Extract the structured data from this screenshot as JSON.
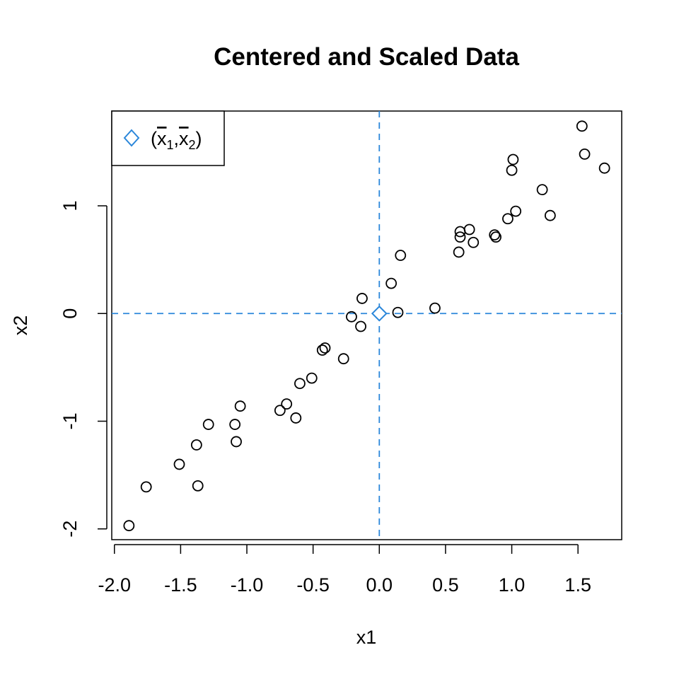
{
  "chart_data": {
    "type": "scatter",
    "title": "Centered and Scaled Data",
    "xlabel": "x1",
    "ylabel": "x2",
    "xlim": [
      -2.02,
      1.83
    ],
    "ylim": [
      -2.1,
      1.88
    ],
    "x_ticks": [
      -2.0,
      -1.5,
      -1.0,
      -0.5,
      0.0,
      0.5,
      1.0,
      1.5
    ],
    "x_tick_labels": [
      "-2.0",
      "-1.5",
      "-1.0",
      "-0.5",
      "0.0",
      "0.5",
      "1.0",
      "1.5"
    ],
    "y_ticks": [
      -2,
      -1,
      0,
      1
    ],
    "y_tick_labels": [
      "-2",
      "-1",
      "0",
      "1"
    ],
    "grid": false,
    "mean_lines": {
      "x": 0,
      "y": 0,
      "color": "#2b87da",
      "style": "dashed"
    },
    "mean_point": {
      "x": 0,
      "y": 0,
      "color": "#2b87da",
      "marker": "diamond"
    },
    "legend": {
      "placement": "top-left",
      "open": "(",
      "var1": "x",
      "sub1": "1",
      "sep": ",",
      "var2": "x",
      "sub2": "2",
      "close": ")"
    },
    "series": [
      {
        "marker": "open-circle",
        "color": "#000000",
        "points": [
          [
            -1.89,
            -1.97
          ],
          [
            -1.76,
            -1.61
          ],
          [
            -1.51,
            -1.4
          ],
          [
            -1.38,
            -1.22
          ],
          [
            -1.37,
            -1.6
          ],
          [
            -1.29,
            -1.03
          ],
          [
            -1.09,
            -1.03
          ],
          [
            -1.08,
            -1.19
          ],
          [
            -1.05,
            -0.86
          ],
          [
            -0.75,
            -0.9
          ],
          [
            -0.7,
            -0.84
          ],
          [
            -0.63,
            -0.97
          ],
          [
            -0.6,
            -0.65
          ],
          [
            -0.51,
            -0.6
          ],
          [
            -0.43,
            -0.34
          ],
          [
            -0.41,
            -0.32
          ],
          [
            -0.27,
            -0.42
          ],
          [
            -0.21,
            -0.03
          ],
          [
            -0.14,
            -0.12
          ],
          [
            -0.13,
            0.14
          ],
          [
            0.09,
            0.28
          ],
          [
            0.14,
            0.01
          ],
          [
            0.16,
            0.54
          ],
          [
            0.42,
            0.05
          ],
          [
            0.6,
            0.57
          ],
          [
            0.61,
            0.71
          ],
          [
            0.61,
            0.76
          ],
          [
            0.68,
            0.78
          ],
          [
            0.71,
            0.66
          ],
          [
            0.87,
            0.73
          ],
          [
            0.88,
            0.71
          ],
          [
            0.97,
            0.88
          ],
          [
            1.0,
            1.33
          ],
          [
            1.01,
            1.43
          ],
          [
            1.03,
            0.95
          ],
          [
            1.23,
            1.15
          ],
          [
            1.29,
            0.91
          ],
          [
            1.53,
            1.74
          ],
          [
            1.55,
            1.48
          ],
          [
            1.7,
            1.35
          ]
        ]
      }
    ]
  }
}
